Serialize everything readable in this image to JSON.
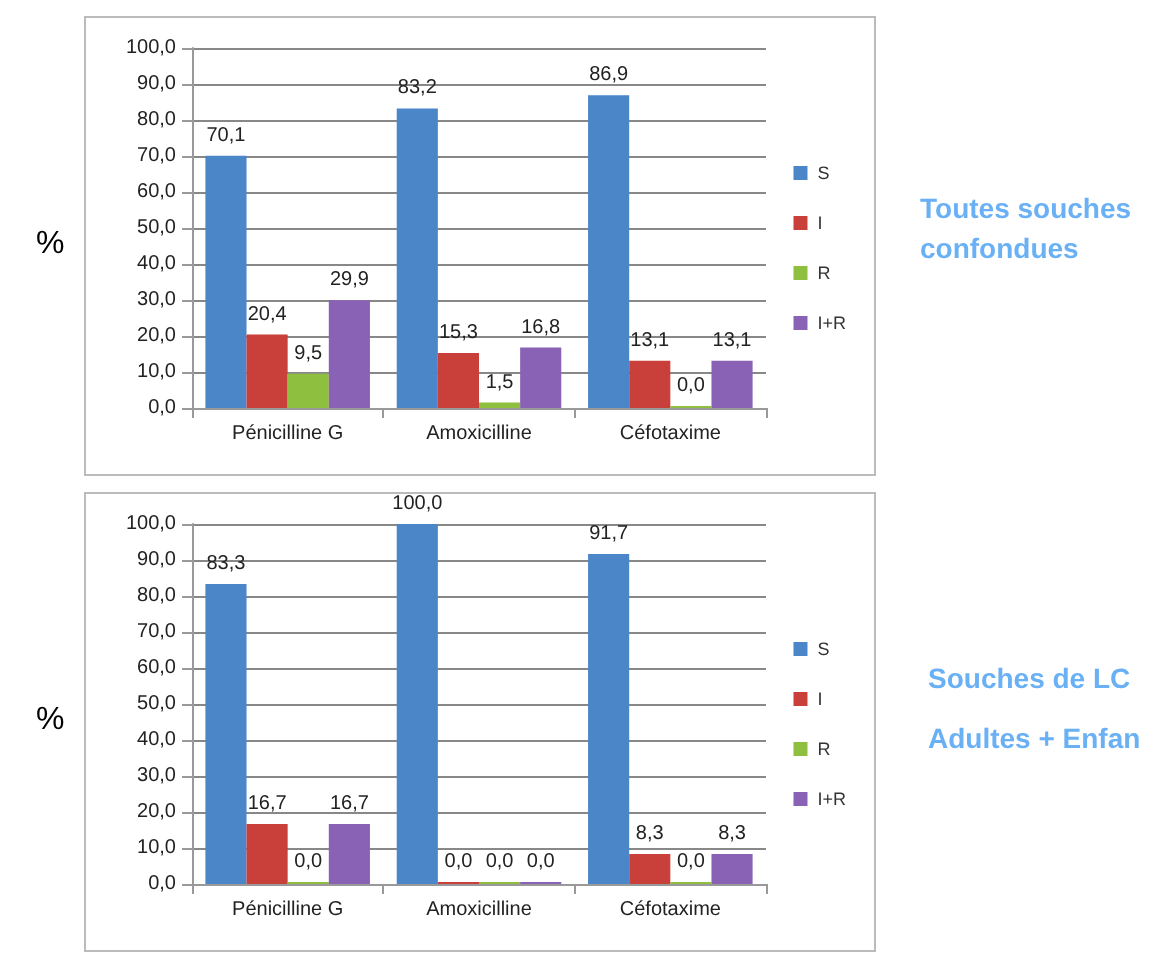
{
  "chart_data": [
    {
      "type": "bar",
      "ylabel": "%",
      "annotations": [
        "Toutes souches confondues"
      ],
      "categories": [
        "Pénicilline G",
        "Amoxicilline",
        "Céfotaxime"
      ],
      "series": [
        {
          "name": "S",
          "color": "#4a86c8",
          "values": [
            70.1,
            83.2,
            86.9
          ],
          "value_labels": [
            "70,1",
            "83,2",
            "86,9"
          ]
        },
        {
          "name": "I",
          "color": "#c9403a",
          "values": [
            20.4,
            15.3,
            13.1
          ],
          "value_labels": [
            "20,4",
            "15,3",
            "13,1"
          ]
        },
        {
          "name": "R",
          "color": "#8fbf3f",
          "values": [
            9.5,
            1.5,
            0.0
          ],
          "value_labels": [
            "9,5",
            "1,5",
            "0,0"
          ]
        },
        {
          "name": "I+R",
          "color": "#8a62b5",
          "values": [
            29.9,
            16.8,
            13.1
          ],
          "value_labels": [
            "29,9",
            "16,8",
            "13,1"
          ]
        }
      ],
      "ylim": [
        0,
        100
      ],
      "yticks": [
        {
          "value": 0,
          "label": "0,0"
        },
        {
          "value": 10,
          "label": "10,0"
        },
        {
          "value": 20,
          "label": "20,0"
        },
        {
          "value": 30,
          "label": "30,0"
        },
        {
          "value": 40,
          "label": "40,0"
        },
        {
          "value": 50,
          "label": "50,0"
        },
        {
          "value": 60,
          "label": "60,0"
        },
        {
          "value": 70,
          "label": "70,0"
        },
        {
          "value": 80,
          "label": "80,0"
        },
        {
          "value": 90,
          "label": "90,0"
        },
        {
          "value": 100,
          "label": "100,0"
        }
      ],
      "grid": "y",
      "legend": "right"
    },
    {
      "type": "bar",
      "ylabel": "%",
      "annotations": [
        "Souches de LC",
        "Adultes + Enfan"
      ],
      "categories": [
        "Pénicilline G",
        "Amoxicilline",
        "Céfotaxime"
      ],
      "series": [
        {
          "name": "S",
          "color": "#4a86c8",
          "values": [
            83.3,
            100.0,
            91.7
          ],
          "value_labels": [
            "83,3",
            "100,0",
            "91,7"
          ]
        },
        {
          "name": "I",
          "color": "#c9403a",
          "values": [
            16.7,
            0.0,
            8.3
          ],
          "value_labels": [
            "16,7",
            "0,0",
            "8,3"
          ]
        },
        {
          "name": "R",
          "color": "#8fbf3f",
          "values": [
            0.0,
            0.0,
            0.0
          ],
          "value_labels": [
            "0,0",
            "0,0",
            "0,0"
          ]
        },
        {
          "name": "I+R",
          "color": "#8a62b5",
          "values": [
            16.7,
            0.0,
            8.3
          ],
          "value_labels": [
            "16,7",
            "0,0",
            "8,3"
          ]
        }
      ],
      "ylim": [
        0,
        100
      ],
      "yticks": [
        {
          "value": 0,
          "label": "0,0"
        },
        {
          "value": 10,
          "label": "10,0"
        },
        {
          "value": 20,
          "label": "20,0"
        },
        {
          "value": 30,
          "label": "30,0"
        },
        {
          "value": 40,
          "label": "40,0"
        },
        {
          "value": 50,
          "label": "50,0"
        },
        {
          "value": 60,
          "label": "60,0"
        },
        {
          "value": 70,
          "label": "70,0"
        },
        {
          "value": 80,
          "label": "80,0"
        },
        {
          "value": 90,
          "label": "90,0"
        },
        {
          "value": 100,
          "label": "100,0"
        }
      ],
      "grid": "y",
      "legend": "right"
    }
  ]
}
